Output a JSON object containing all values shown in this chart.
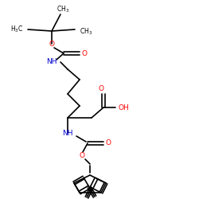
{
  "bg": "#ffffff",
  "bc": "#000000",
  "Nc": "#0000cd",
  "Oc": "#ff0000",
  "lw": 1.2,
  "fs_label": 6.5,
  "fs_group": 5.5,
  "figsize": [
    2.5,
    2.5
  ],
  "dpi": 100,
  "xlim": [
    0,
    250
  ],
  "ylim": [
    0,
    250
  ]
}
